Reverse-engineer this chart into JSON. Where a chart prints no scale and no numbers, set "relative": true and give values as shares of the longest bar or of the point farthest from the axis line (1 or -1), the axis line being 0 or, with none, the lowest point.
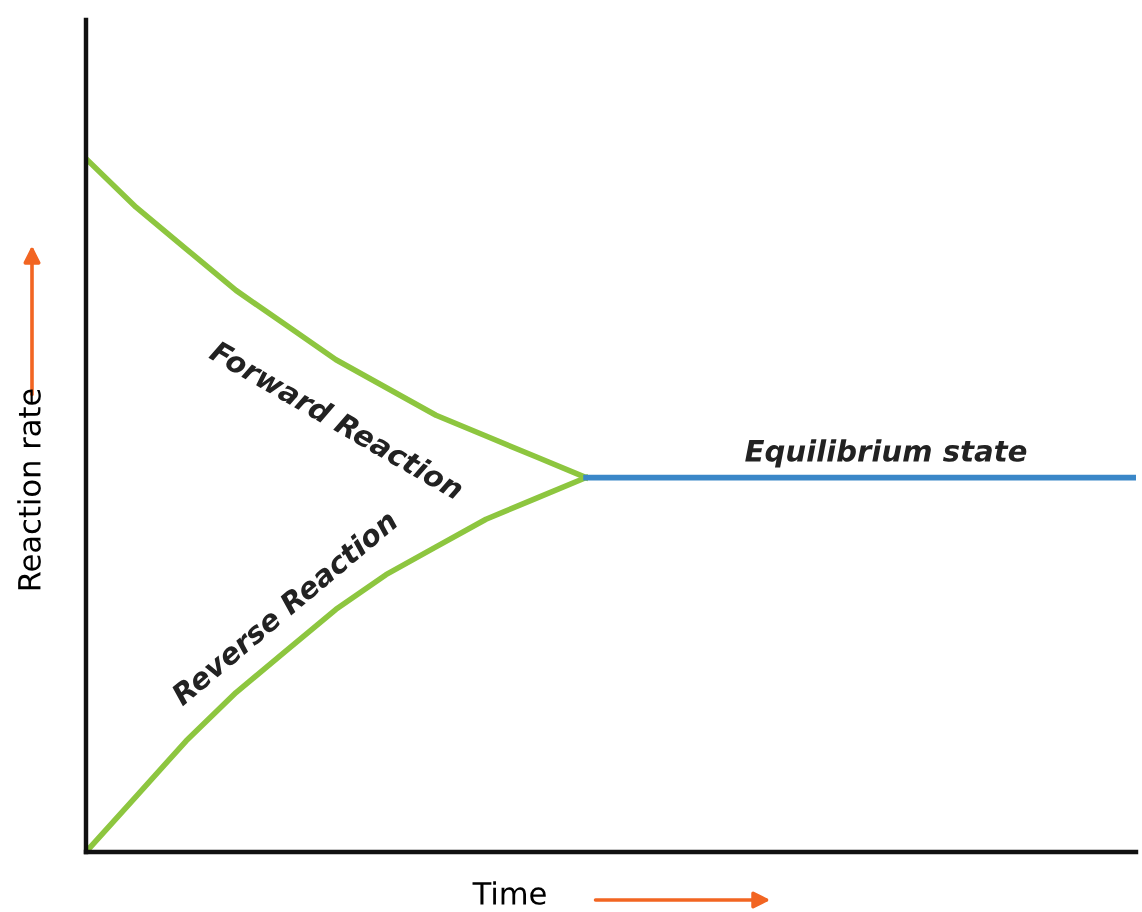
{
  "chart_data": {
    "type": "line",
    "relative": true,
    "xlabel": "Time",
    "ylabel": "Reaction rate",
    "categories": [
      null,
      null,
      null,
      null,
      null,
      null,
      null,
      null,
      null,
      null,
      null,
      null,
      null,
      null,
      null,
      null,
      null,
      null,
      null,
      null,
      null,
      null
    ],
    "series": [
      {
        "name": "Forward Reaction",
        "color": "#8dc63f",
        "values": [
          1.0,
          0.93,
          0.87,
          0.81,
          0.76,
          0.71,
          0.67,
          0.63,
          0.6,
          0.57,
          0.54,
          null,
          null,
          null,
          null,
          null,
          null,
          null,
          null,
          null,
          null,
          null
        ]
      },
      {
        "name": "Reverse Reaction",
        "color": "#8dc63f",
        "values": [
          0.0,
          0.08,
          0.16,
          0.23,
          0.29,
          0.35,
          0.4,
          0.44,
          0.48,
          0.51,
          0.54,
          null,
          null,
          null,
          null,
          null,
          null,
          null,
          null,
          null,
          null,
          null
        ]
      },
      {
        "name": "Equilibrium state",
        "color": "#3a87c8",
        "values": [
          null,
          null,
          null,
          null,
          null,
          null,
          null,
          null,
          null,
          null,
          0.54,
          0.54,
          0.54,
          0.54,
          0.54,
          0.54,
          0.54,
          0.54,
          0.54,
          0.54,
          0.54,
          0.54
        ]
      }
    ],
    "legend": false,
    "marker": "none",
    "line_style": "solid"
  }
}
